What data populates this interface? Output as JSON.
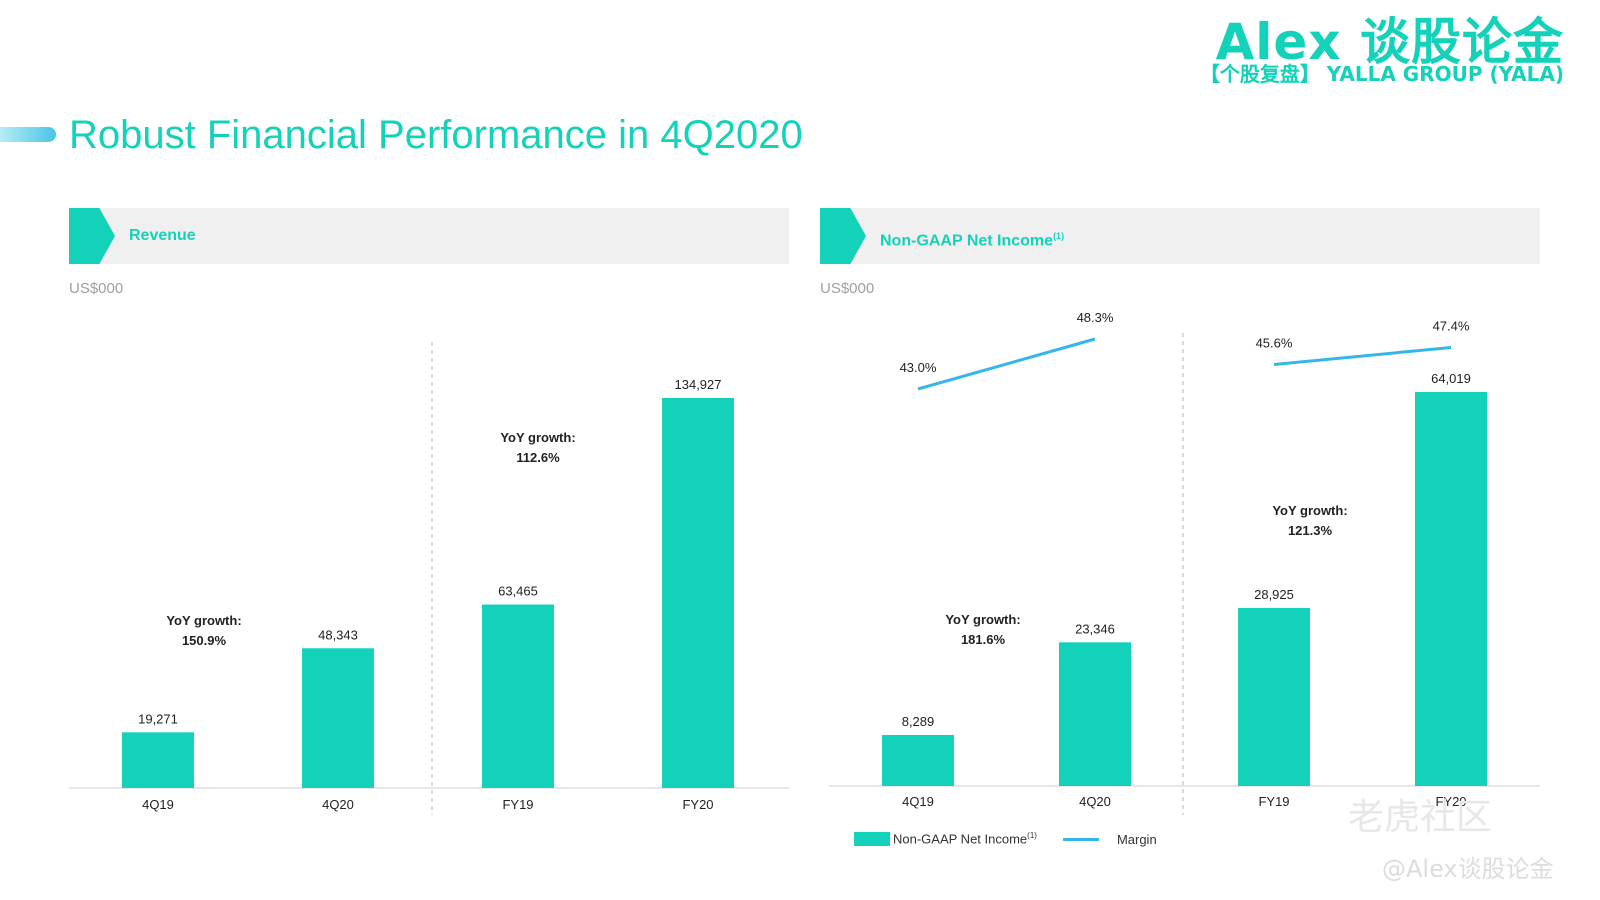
{
  "brand": {
    "title": "Alex 谈股论金",
    "subtitle": "【个股复盘】 YALLA GROUP (YALA)"
  },
  "page_title": "Robust Financial Performance in 4Q2020",
  "colors": {
    "accent": "#14d2b9",
    "margin_line": "#35b6ea",
    "panel_bg": "#f0f0f0"
  },
  "panels": {
    "revenue": {
      "label": "Revenue",
      "unit": "US$000"
    },
    "net_income": {
      "label": "Non-GAAP Net Income",
      "label_sup": "(1)",
      "unit": "US$000"
    }
  },
  "legend": {
    "bar_label": "Non-GAAP Net Income",
    "bar_sup": "(1)",
    "line_label": "Margin"
  },
  "watermark": {
    "text1": "老虎社区",
    "text2": "@Alex谈股论金"
  },
  "chart_data": [
    {
      "type": "bar",
      "title": "Revenue",
      "ylabel": "US$000",
      "categories": [
        "4Q19",
        "4Q20",
        "FY19",
        "FY20"
      ],
      "values": [
        19271,
        48343,
        63465,
        134927
      ],
      "value_labels": [
        "19,271",
        "48,343",
        "63,465",
        "134,927"
      ],
      "annotations": [
        {
          "label": "YoY growth:",
          "value": "150.9%"
        },
        {
          "label": "YoY growth:",
          "value": "112.6%"
        }
      ],
      "grid": false
    },
    {
      "type": "bar",
      "title": "Non-GAAP Net Income",
      "ylabel": "US$000",
      "categories": [
        "4Q19",
        "4Q20",
        "FY19",
        "FY20"
      ],
      "series": [
        {
          "name": "Non-GAAP Net Income",
          "values": [
            8289,
            23346,
            28925,
            64019
          ],
          "value_labels": [
            "8,289",
            "23,346",
            "28,925",
            "64,019"
          ]
        },
        {
          "name": "Margin",
          "values": [
            43.0,
            48.3,
            45.6,
            47.4
          ],
          "value_labels": [
            "43.0%",
            "48.3%",
            "45.6%",
            "47.4%"
          ]
        }
      ],
      "annotations": [
        {
          "label": "YoY growth:",
          "value": "181.6%"
        },
        {
          "label": "YoY growth:",
          "value": "121.3%"
        }
      ],
      "legend": "bottom-left",
      "grid": false
    }
  ]
}
